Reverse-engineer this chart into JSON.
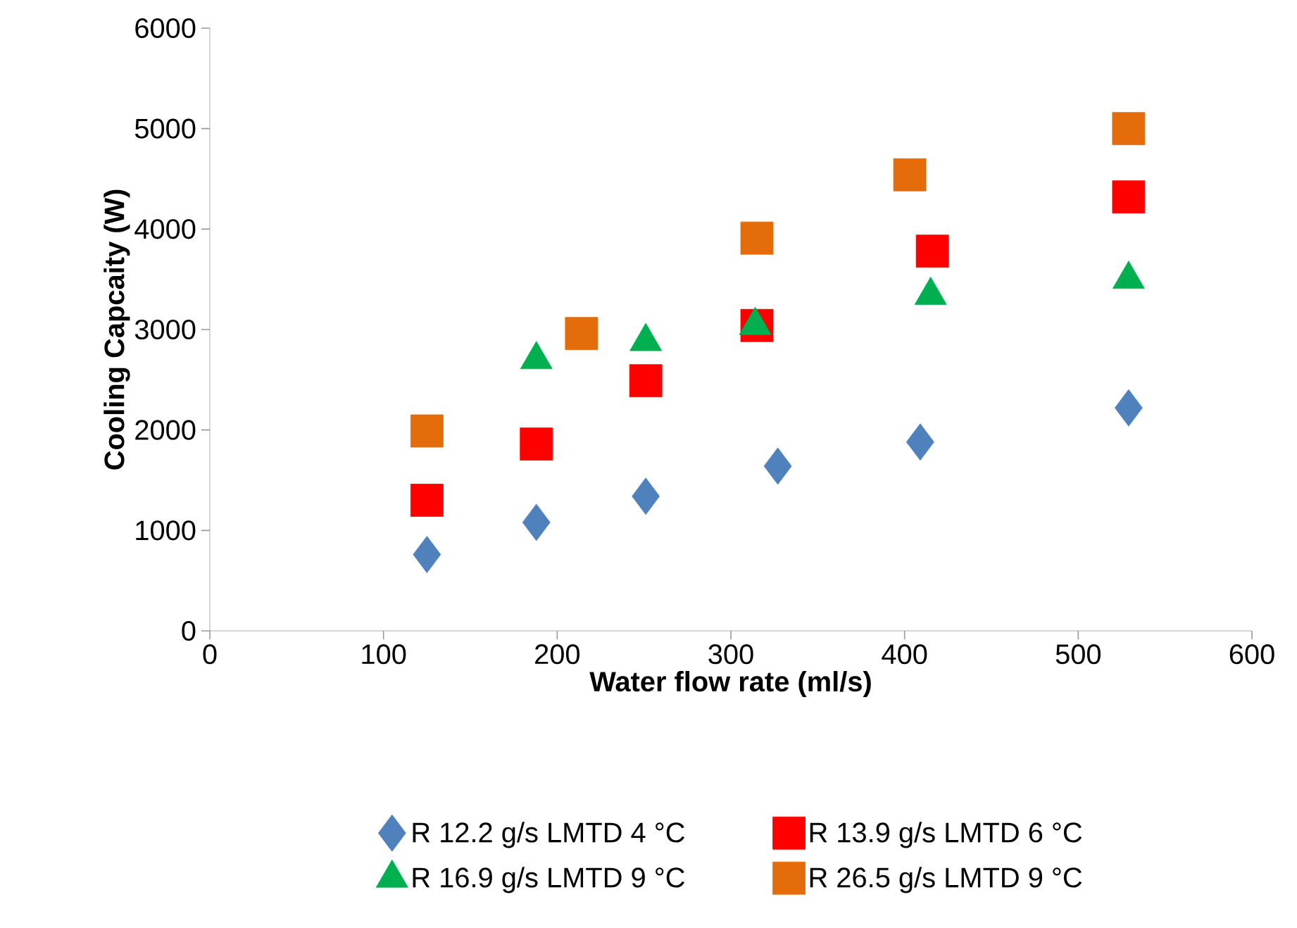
{
  "chart_data": {
    "type": "scatter",
    "xlabel": "Water flow rate (ml/s)",
    "ylabel": "Cooling Capcaity (W)",
    "xlim": [
      0,
      600
    ],
    "xticks": [
      0,
      100,
      200,
      300,
      400,
      500,
      600
    ],
    "ylim": [
      0,
      6000
    ],
    "yticks": [
      0,
      1000,
      2000,
      3000,
      4000,
      5000,
      6000
    ],
    "grid": false,
    "legend": "bottom",
    "series": [
      {
        "name": "R 12.2 g/s LMTD 4 °C",
        "color": "#4f81bd",
        "marker": "diamond",
        "x": [
          125,
          188,
          251,
          327,
          409,
          529
        ],
        "values": [
          760,
          1080,
          1340,
          1640,
          1880,
          2220
        ]
      },
      {
        "name": "R 13.9 g/s LMTD 6 °C",
        "color": "#ff0000",
        "marker": "square",
        "x": [
          125,
          188,
          251,
          315,
          416,
          529
        ],
        "values": [
          1300,
          1860,
          2490,
          3040,
          3780,
          4320
        ]
      },
      {
        "name": "R 16.9 g/s LMTD 9 °C",
        "color": "#00b050",
        "marker": "triangle",
        "x": [
          188,
          251,
          314,
          415,
          529
        ],
        "values": [
          2700,
          2880,
          3040,
          3340,
          3500
        ]
      },
      {
        "name": "R 26.5 g/s LMTD 9 °C",
        "color": "#e46c0a",
        "marker": "square",
        "x": [
          125,
          214,
          315,
          403,
          529
        ],
        "values": [
          1990,
          2960,
          3910,
          4540,
          5000
        ]
      }
    ]
  }
}
